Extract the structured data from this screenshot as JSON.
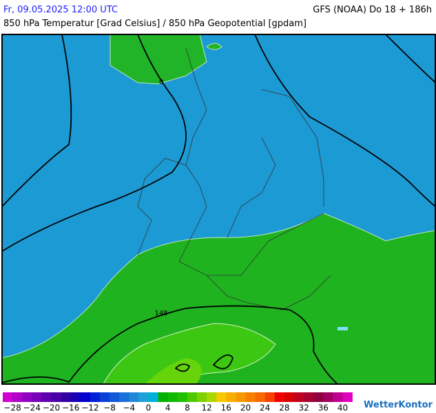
{
  "header": {
    "datetime": "Fr, 09.05.2025 12:00 UTC",
    "model": "GFS (NOAA) Do 18 + 186h",
    "title": "850 hPa Temperatur [Grad Celsius] / 850 hPa Geopotential [gpdam]"
  },
  "map": {
    "contour_labels": [
      "0",
      "148"
    ]
  },
  "colorbar": {
    "tick_labels": [
      "−28",
      "−24",
      "−20",
      "−16",
      "−12",
      "−8",
      "−4",
      "0",
      "4",
      "8",
      "12",
      "16",
      "20",
      "24",
      "28",
      "32",
      "36",
      "40"
    ],
    "colors": [
      "#d000d0",
      "#b000c8",
      "#9000c0",
      "#7800b8",
      "#6000b0",
      "#4800a8",
      "#3000a0",
      "#1800b8",
      "#0000d0",
      "#0020d8",
      "#0840d8",
      "#1058d8",
      "#1870d8",
      "#2088d8",
      "#20a0d8",
      "#00b0d8",
      "#00b000",
      "#10b800",
      "#20c000",
      "#50c800",
      "#80d000",
      "#a8d800",
      "#f8c800",
      "#f8b000",
      "#f89800",
      "#f88000",
      "#f86800",
      "#f84000",
      "#f00000",
      "#d80000",
      "#c00020",
      "#a80030",
      "#900040",
      "#a00060",
      "#c00090",
      "#e000c0"
    ]
  },
  "logo": "WetterKontor"
}
